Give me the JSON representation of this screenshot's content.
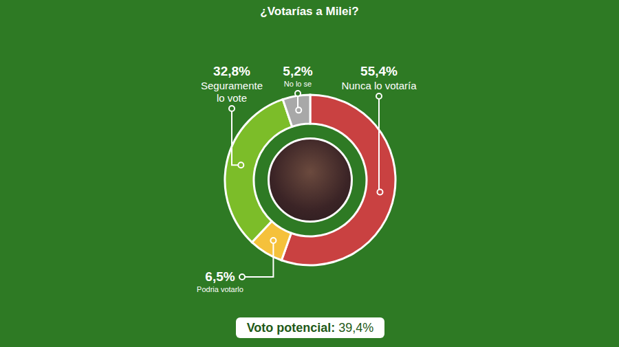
{
  "chart_data": {
    "type": "donut",
    "title": "¿Votarías a Milei?",
    "categories": [
      "Nunca lo votaría",
      "Podria votarlo",
      "Seguramente lo vote",
      "No lo se"
    ],
    "values": [
      55.4,
      6.5,
      32.8,
      5.2
    ],
    "value_labels": [
      "55,4%",
      "6,5%",
      "32,8%",
      "5,2%"
    ],
    "colors": [
      "#c94141",
      "#f5c13b",
      "#7cbd29",
      "#a8a8a8"
    ],
    "data_labels": true,
    "annotation": "Voto potencial: 39,4%"
  }
}
